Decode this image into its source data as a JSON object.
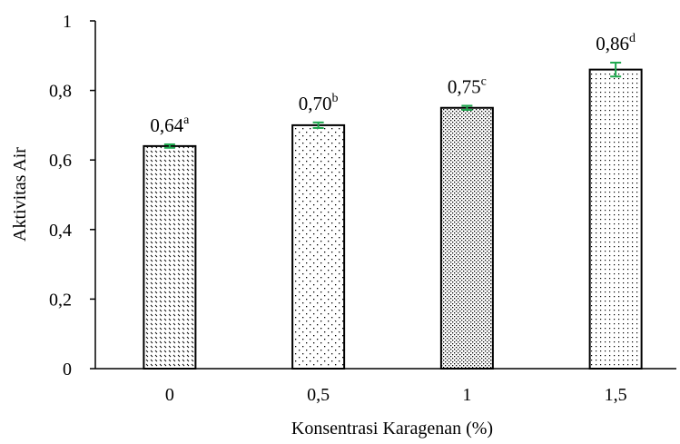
{
  "chart_data": {
    "type": "bar",
    "categories": [
      "0",
      "0,5",
      "1",
      "1,5"
    ],
    "values": [
      0.64,
      0.7,
      0.75,
      0.86
    ],
    "errors": [
      0.005,
      0.008,
      0.006,
      0.02
    ],
    "data_labels": [
      "0,64",
      "0,70",
      "0,75",
      "0,86"
    ],
    "letters": [
      "a",
      "b",
      "c",
      "d"
    ],
    "xlabel": "Konsentrasi Karagenan (%)",
    "ylabel": "Aktivitas Air",
    "ylim": [
      0,
      1
    ],
    "yticks": [
      "0",
      "0,2",
      "0,4",
      "0,6",
      "0,8",
      "1"
    ],
    "grid": false,
    "legend": "none",
    "colors": {
      "bar_border": "#000000",
      "error_bar": "#1fa84f",
      "pattern": "#000000"
    }
  }
}
